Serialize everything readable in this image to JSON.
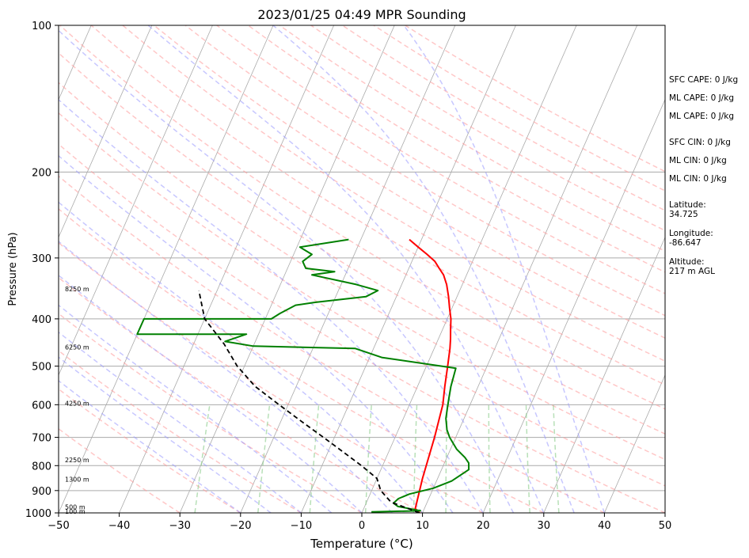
{
  "chart_data": {
    "type": "line",
    "chart_kind": "Skew-T log-P sounding",
    "title": "2023/01/25 04:49 MPR Sounding",
    "xlabel": "Temperature (°C)",
    "ylabel": "Pressure (hPa)",
    "xlim": [
      -50,
      50
    ],
    "ylim": [
      1000,
      100
    ],
    "y_scale": "log",
    "x_ticks": [
      -50,
      -40,
      -30,
      -20,
      -10,
      0,
      10,
      20,
      30,
      40,
      50
    ],
    "x_tick_labels": [
      "−50",
      "−40",
      "−30",
      "−20",
      "−10",
      "0",
      "10",
      "20",
      "30",
      "40",
      "50"
    ],
    "y_ticks": [
      1000,
      900,
      800,
      700,
      600,
      500,
      400,
      300,
      200,
      100
    ],
    "y_tick_labels": [
      "1000",
      "900",
      "800",
      "700",
      "600",
      "500",
      "400",
      "300",
      "200",
      "100"
    ],
    "grid": true,
    "colors": {
      "temperature": "#ff0000",
      "dewpoint": "#008000",
      "parcel": "#000000",
      "dry_adiabats": "#ff9999",
      "moist_adiabats": "#9999ff",
      "mixing_ratio": "#88cc88",
      "isotherms": "#aaaaaa",
      "isobars": "#aaaaaa"
    },
    "series": [
      {
        "key": "temperature",
        "x": [
          9.5,
          8.5,
          7.5,
          6.5,
          5.5,
          4.5,
          3.5,
          2.6,
          2.0,
          1.3,
          0.6,
          -0.4,
          -1.4,
          -2.6,
          -3.8,
          -5.0,
          -6.2,
          -8.0,
          -10.0,
          -12.0
        ],
        "y": [
          1000,
          980,
          850,
          700,
          600,
          550,
          500,
          460,
          440,
          420,
          400,
          380,
          360,
          340,
          325,
          315,
          305,
          295,
          285,
          275
        ]
      },
      {
        "key": "dewpoint",
        "x": [
          1.5,
          9.5,
          5.5,
          4.5,
          5.0,
          6.5,
          10.0,
          12.5,
          14.5,
          14.0,
          13.0,
          11.0,
          9.0,
          8.0,
          7.0,
          6.5,
          6.0,
          5.5,
          5.0,
          -8.0,
          -13.0,
          -30.0,
          -35.0,
          -32.0,
          -50.0,
          -50.0,
          -29.0,
          -28.0,
          -26.0,
          -23.0,
          -15.0,
          -13.5,
          -17.5,
          -25.5,
          -22.0,
          -27.0,
          -28.0,
          -27.0,
          -29.5,
          -22.0
        ],
        "y": [
          995,
          990,
          970,
          955,
          935,
          915,
          890,
          860,
          815,
          790,
          770,
          740,
          700,
          675,
          640,
          610,
          580,
          550,
          505,
          480,
          460,
          455,
          445,
          430,
          430,
          400,
          400,
          390,
          375,
          370,
          360,
          350,
          340,
          325,
          320,
          315,
          305,
          295,
          285,
          275
        ]
      },
      {
        "key": "parcel",
        "x": [
          9.5,
          4.0,
          1.5,
          0.0,
          -3.5,
          -7.5,
          -11.8,
          -16.5,
          -21.5,
          -26.8,
          -31.2,
          -35.0,
          -40.0,
          -43.0
        ],
        "y": [
          1000,
          950,
          900,
          850,
          800,
          750,
          700,
          650,
          600,
          550,
          500,
          450,
          400,
          350
        ]
      }
    ],
    "altitude_markers": [
      {
        "p": 1000,
        "label": "100 m"
      },
      {
        "p": 980,
        "label": "500 m"
      },
      {
        "p": 860,
        "label": "1300 m"
      },
      {
        "p": 785,
        "label": "2250 m"
      },
      {
        "p": 600,
        "label": "4250 m"
      },
      {
        "p": 460,
        "label": "6250 m"
      },
      {
        "p": 350,
        "label": "8250 m"
      }
    ],
    "annotations": [
      "SFC CAPE: 0 J/kg",
      "ML CAPE: 0 J/kg",
      "ML CAPE: 0 J/kg",
      "SFC CIN: 0 J/kg",
      "ML CIN: 0 J/kg",
      "ML CIN: 0 J/kg",
      "Latitude:\n34.725",
      "Longitude:\n-86.647",
      "Altitude:\n217 m AGL"
    ]
  }
}
